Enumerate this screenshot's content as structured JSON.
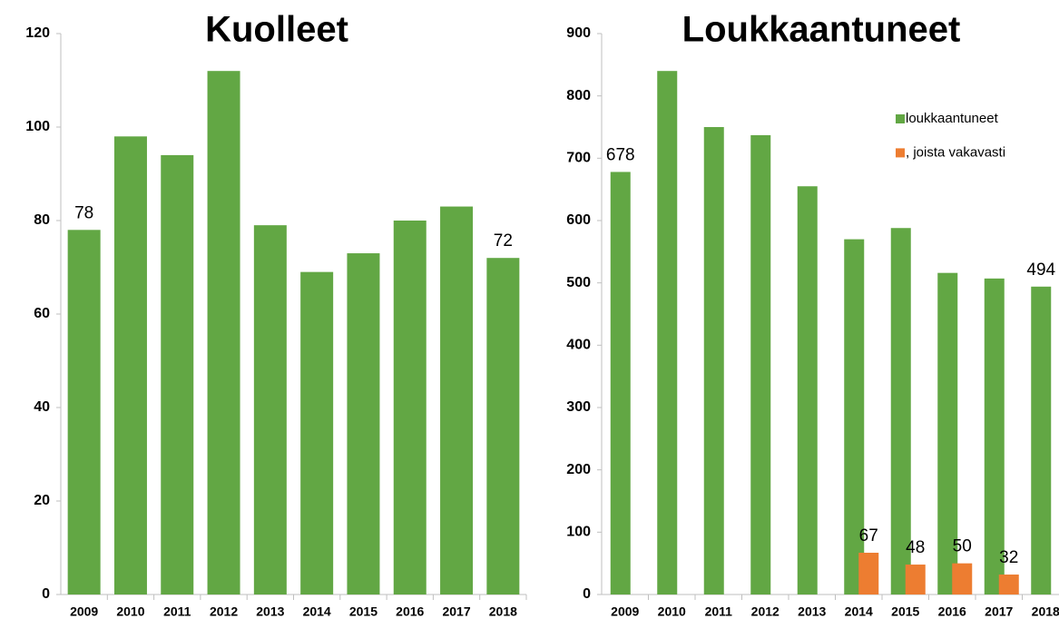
{
  "chart_data": [
    {
      "type": "bar",
      "title": "Kuolleet",
      "categories": [
        "2009",
        "2010",
        "2011",
        "2012",
        "2013",
        "2014",
        "2015",
        "2016",
        "2017",
        "2018"
      ],
      "series": [
        {
          "name": null,
          "color": "#62a744",
          "values": [
            78,
            98,
            94,
            112,
            79,
            69,
            73,
            80,
            83,
            72
          ],
          "value_labels": [
            "78",
            null,
            null,
            null,
            null,
            null,
            null,
            null,
            null,
            "72"
          ]
        }
      ],
      "ylim": [
        0,
        120
      ],
      "yticks": [
        0,
        20,
        40,
        60,
        80,
        100,
        120
      ],
      "legend": false
    },
    {
      "type": "bar",
      "title": "Loukkaantuneet",
      "categories": [
        "2009",
        "2010",
        "2011",
        "2012",
        "2013",
        "2014",
        "2015",
        "2016",
        "2017",
        "2018"
      ],
      "series": [
        {
          "name": "loukkaantuneet",
          "color": "#62a744",
          "values": [
            678,
            840,
            750,
            737,
            655,
            570,
            588,
            516,
            507,
            494
          ],
          "value_labels": [
            "678",
            null,
            null,
            null,
            null,
            null,
            null,
            null,
            null,
            "494"
          ]
        },
        {
          "name": ", joista vakavasti",
          "color": "#ed7d31",
          "values": [
            null,
            null,
            null,
            null,
            null,
            67,
            48,
            50,
            32,
            null
          ],
          "value_labels": [
            null,
            null,
            null,
            null,
            null,
            "67",
            "48",
            "50",
            "32",
            null
          ]
        }
      ],
      "ylim": [
        0,
        900
      ],
      "yticks": [
        0,
        100,
        200,
        300,
        400,
        500,
        600,
        700,
        800,
        900
      ],
      "legend": "top-right"
    }
  ]
}
